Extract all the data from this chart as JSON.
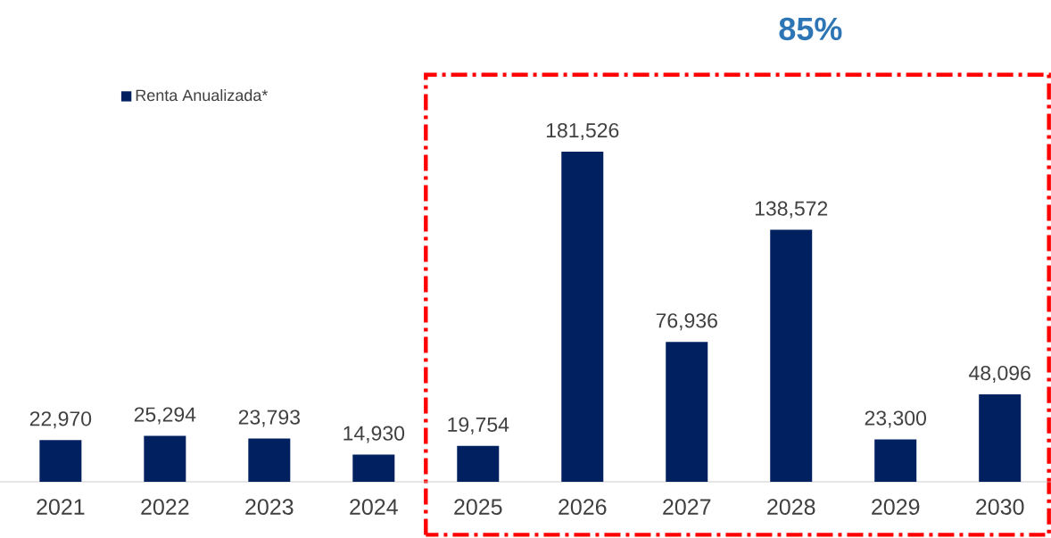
{
  "chart_data": {
    "type": "bar",
    "categories": [
      "2021",
      "2022",
      "2023",
      "2024",
      "2025",
      "2026",
      "2027",
      "2028",
      "2029",
      "2030"
    ],
    "series": [
      {
        "name": "Renta Anualizada*",
        "color": "#002060",
        "values": [
          22970,
          25294,
          23793,
          14930,
          19754,
          181526,
          76936,
          138572,
          23300,
          48096
        ],
        "value_labels": [
          "22,970",
          "25,294",
          "23,793",
          "14,930",
          "19,754",
          "181,526",
          "76,936",
          "138,572",
          "23,300",
          "48,096"
        ]
      }
    ],
    "bands": [
      {
        "axis": "x",
        "from": "2025",
        "to": "2030",
        "label": "85%",
        "color": "#ff0000"
      }
    ],
    "legend": "top left"
  }
}
